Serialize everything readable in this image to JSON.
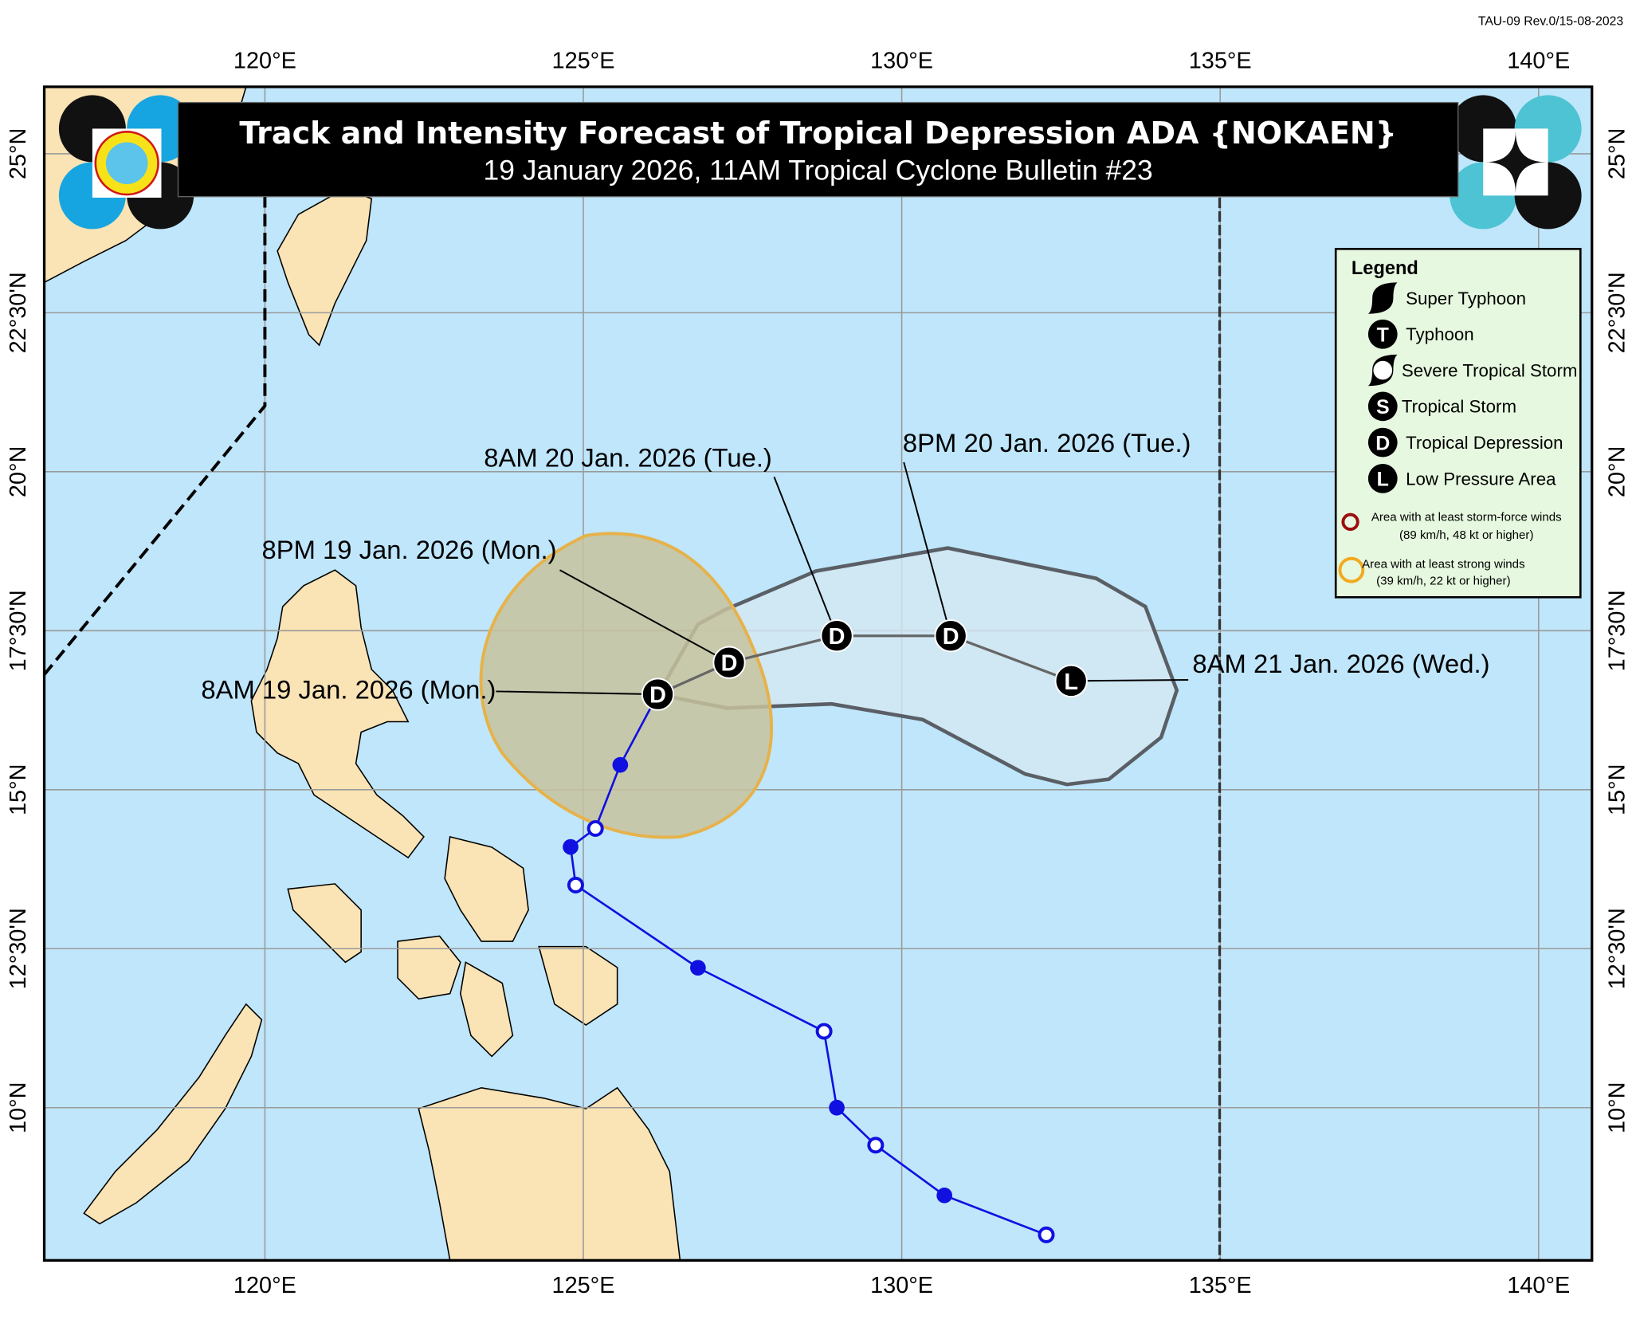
{
  "revision_code": "TAU-09 Rev.0/15-08-2023",
  "title": {
    "line1": "Track and Intensity Forecast of Tropical Depression ADA {NOKAEN}",
    "line2": "19 January 2026, 11AM Tropical Cyclone Bulletin #23"
  },
  "logo_left_text": "PAGASA 1865",
  "axes": {
    "lon_ticks": [
      {
        "value": 120,
        "label": "120°E"
      },
      {
        "value": 125,
        "label": "125°E"
      },
      {
        "value": 130,
        "label": "130°E"
      },
      {
        "value": 135,
        "label": "135°E"
      },
      {
        "value": 140,
        "label": "140°E"
      }
    ],
    "lat_ticks": [
      {
        "value": 25,
        "label": "25°N"
      },
      {
        "value": 22.5,
        "label": "22°30'N"
      },
      {
        "value": 20,
        "label": "20°N"
      },
      {
        "value": 17.5,
        "label": "17°30'N"
      },
      {
        "value": 15,
        "label": "15°N"
      },
      {
        "value": 12.5,
        "label": "12°30'N"
      },
      {
        "value": 10,
        "label": "10°N"
      }
    ],
    "lon_range": [
      116.5,
      140.9
    ],
    "lat_range": [
      7.6,
      26.05
    ]
  },
  "colors": {
    "ocean": "#bfe6fb",
    "land": "#fae3b5",
    "past_track": "#1010e0",
    "forecast_track": "#666666",
    "cone_fill": "#d5e7f2",
    "cone_stroke": "#5a5f66",
    "strong_wind_fill": "#c7c29e",
    "strong_wind_stroke": "#e6b24a",
    "storm_force_stroke": "#9b0f0f",
    "legend_bg": "#e6f8df"
  },
  "forecast": [
    {
      "label": "8AM 19 Jan. 2026 (Mon.)",
      "symbol": "D",
      "lon": 126.17,
      "lat": 16.5
    },
    {
      "label": "8PM 19 Jan. 2026 (Mon.)",
      "symbol": "D",
      "lon": 127.29,
      "lat": 17.0
    },
    {
      "label": "8AM 20 Jan. 2026 (Tue.)",
      "symbol": "D",
      "lon": 128.98,
      "lat": 17.42
    },
    {
      "label": "8PM 20 Jan. 2026 (Tue.)",
      "symbol": "D",
      "lon": 130.77,
      "lat": 17.42
    },
    {
      "label": "8AM 21 Jan. 2026 (Wed.)",
      "symbol": "L",
      "lon": 132.66,
      "lat": 16.71
    }
  ],
  "past_track": [
    {
      "lon": 132.27,
      "lat": 8.0,
      "marker": "open"
    },
    {
      "lon": 130.67,
      "lat": 8.62,
      "marker": "filled"
    },
    {
      "lon": 129.59,
      "lat": 9.41,
      "marker": "open"
    },
    {
      "lon": 128.98,
      "lat": 10.0,
      "marker": "filled"
    },
    {
      "lon": 128.78,
      "lat": 11.2,
      "marker": "open"
    },
    {
      "lon": 126.8,
      "lat": 12.2,
      "marker": "filled"
    },
    {
      "lon": 124.88,
      "lat": 13.5,
      "marker": "open"
    },
    {
      "lon": 124.8,
      "lat": 14.1,
      "marker": "filled"
    },
    {
      "lon": 125.19,
      "lat": 14.39,
      "marker": "open"
    },
    {
      "lon": 125.58,
      "lat": 15.39,
      "marker": "filled"
    }
  ],
  "legend": {
    "title": "Legend",
    "items": [
      {
        "icon": "super-typhoon-icon",
        "label": "Super Typhoon"
      },
      {
        "icon": "typhoon-icon",
        "symbol": "T",
        "label": "Typhoon"
      },
      {
        "icon": "severe-tropical-storm-icon",
        "label": "Severe Tropical Storm"
      },
      {
        "icon": "tropical-storm-icon",
        "symbol": "S",
        "label": "Tropical Storm"
      },
      {
        "icon": "tropical-depression-icon",
        "symbol": "D",
        "label": "Tropical Depression"
      },
      {
        "icon": "low-pressure-area-icon",
        "symbol": "L",
        "label": "Low Pressure Area"
      }
    ],
    "storm_force": {
      "line1": "Area with at least storm-force winds",
      "line2": "(89 km/h, 48 kt or higher)"
    },
    "strong_winds": {
      "line1": "Area with at least strong winds",
      "line2": "(39 km/h, 22 kt or higher)"
    }
  }
}
